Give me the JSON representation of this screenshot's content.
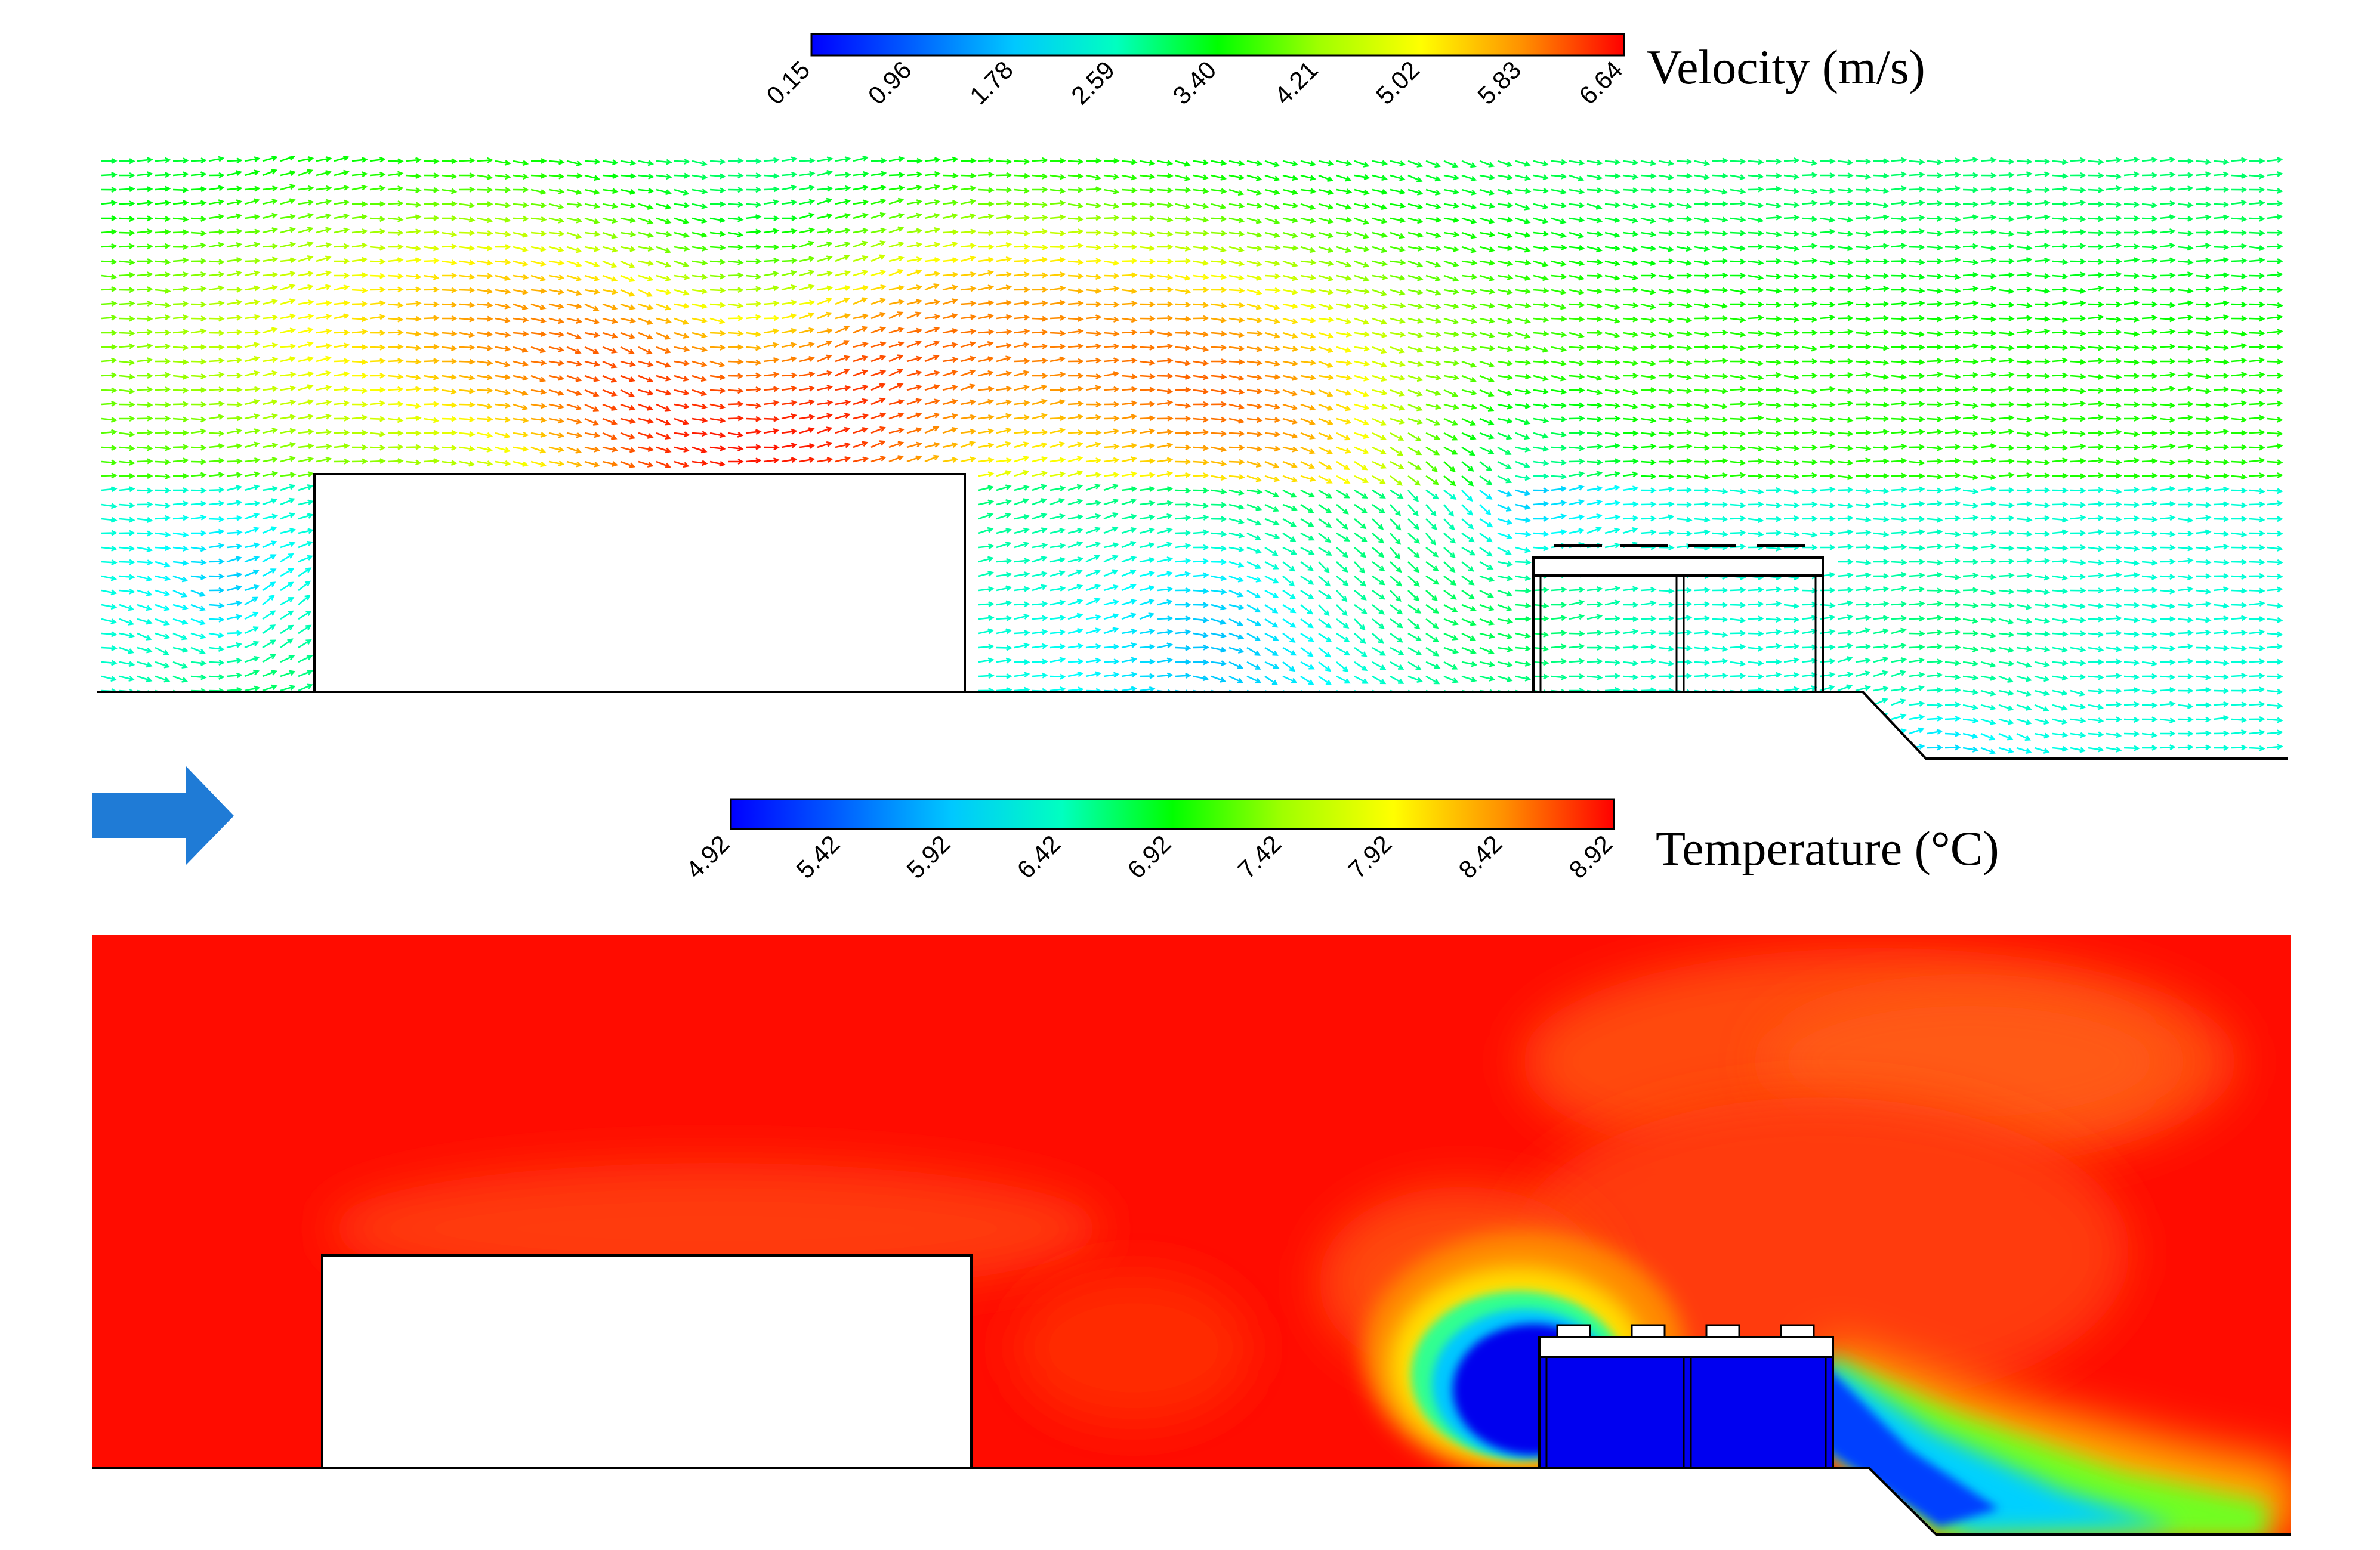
{
  "velocity_panel": {
    "title": "Velocity (m/s)",
    "colorbar_ticks": [
      "0.15",
      "0.96",
      "1.78",
      "2.59",
      "3.40",
      "4.21",
      "5.02",
      "5.83",
      "6.64"
    ]
  },
  "temperature_panel": {
    "title": "Temperature (°C)",
    "colorbar_ticks": [
      "4.92",
      "5.42",
      "5.92",
      "6.42",
      "6.92",
      "7.42",
      "7.92",
      "8.42",
      "8.92"
    ]
  },
  "inflow_arrow": {
    "icon": "arrow-right-icon",
    "color": "#1f7bd6"
  },
  "colormap": [
    "#0000ff",
    "#00a0ff",
    "#00ffff",
    "#00ff80",
    "#00ff00",
    "#80ff00",
    "#ffff00",
    "#ff8000",
    "#ff0000"
  ]
}
